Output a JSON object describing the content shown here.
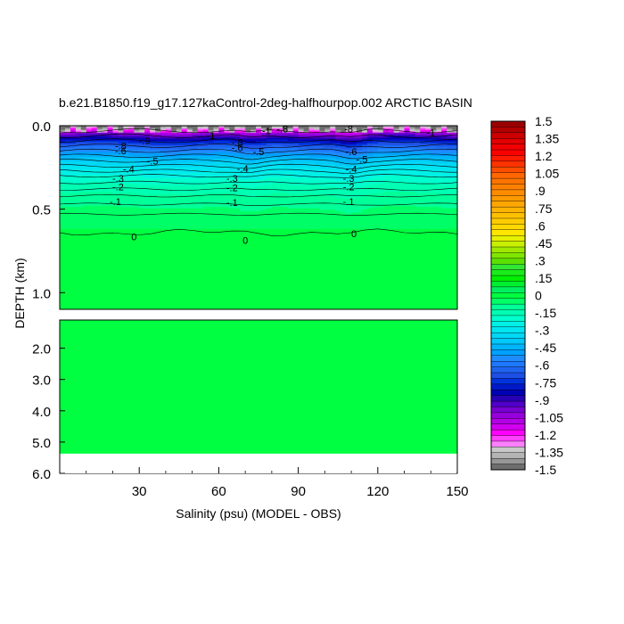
{
  "chart_data": {
    "type": "heatmap",
    "title": "b.e21.B1850.f19_g17.127kaControl-2deg-halfhourpop.002 ARCTIC BASIN",
    "xlabel": "Salinity (psu) (MODEL - OBS)",
    "ylabel": "DEPTH (km)",
    "xlim": [
      0,
      150
    ],
    "upper_panel": {
      "ylim": [
        0.0,
        1.1
      ],
      "yticks": [
        "0.0",
        "0.5",
        "1.0"
      ],
      "ytick_values": [
        0.0,
        0.5,
        1.0
      ]
    },
    "lower_panel": {
      "ylim": [
        1.1,
        6.0
      ],
      "yticks": [
        "2.0",
        "3.0",
        "4.0",
        "5.0",
        "6.0"
      ],
      "ytick_values": [
        2.0,
        3.0,
        4.0,
        5.0,
        6.0
      ],
      "bottom_of_data": 5.37
    },
    "xticks": [
      "30",
      "60",
      "90",
      "120",
      "150"
    ],
    "xtick_values": [
      30,
      60,
      90,
      120,
      150
    ],
    "contour_labels": [
      {
        "text": "0",
        "x": 28,
        "depth": 0.665
      },
      {
        "text": "0",
        "x": 70,
        "depth": 0.685
      },
      {
        "text": "0",
        "x": 111,
        "depth": 0.645
      },
      {
        "text": "-.1",
        "x": 21,
        "depth": 0.455
      },
      {
        "text": "-.1",
        "x": 65,
        "depth": 0.46
      },
      {
        "text": "-.1",
        "x": 109,
        "depth": 0.455
      },
      {
        "text": "-.2",
        "x": 22,
        "depth": 0.365
      },
      {
        "text": "-.2",
        "x": 65,
        "depth": 0.37
      },
      {
        "text": "-.2",
        "x": 109,
        "depth": 0.365
      },
      {
        "text": "-.3",
        "x": 22,
        "depth": 0.315
      },
      {
        "text": "-.3",
        "x": 65,
        "depth": 0.315
      },
      {
        "text": "-.3",
        "x": 109,
        "depth": 0.315
      },
      {
        "text": "-.4",
        "x": 26,
        "depth": 0.26
      },
      {
        "text": "-.4",
        "x": 69,
        "depth": 0.255
      },
      {
        "text": "-.4",
        "x": 110,
        "depth": 0.26
      },
      {
        "text": "-.5",
        "x": 35,
        "depth": 0.21
      },
      {
        "text": "-.5",
        "x": 75,
        "depth": 0.155
      },
      {
        "text": "-.5",
        "x": 114,
        "depth": 0.2
      },
      {
        "text": "-.6",
        "x": 23,
        "depth": 0.15
      },
      {
        "text": "-.6",
        "x": 67,
        "depth": 0.13
      },
      {
        "text": "-.6",
        "x": 110,
        "depth": 0.155
      },
      {
        "text": "-.8",
        "x": 23,
        "depth": 0.12
      },
      {
        "text": "-.8",
        "x": 67,
        "depth": 0.1
      },
      {
        "text": "-.9",
        "x": 32,
        "depth": 0.09
      },
      {
        "text": "-1",
        "x": 57,
        "depth": 0.06
      },
      {
        "text": "-1",
        "x": 78,
        "depth": 0.03
      },
      {
        "text": "-.8",
        "x": 84,
        "depth": 0.02
      },
      {
        "text": "-8",
        "x": 109,
        "depth": 0.02
      },
      {
        "text": "-1",
        "x": 140,
        "depth": 0.04
      }
    ],
    "colorbar": {
      "labels": [
        "1.5",
        "1.35",
        "1.2",
        "1.05",
        ".9",
        ".75",
        ".6",
        ".45",
        ".3",
        ".15",
        "0",
        "-.15",
        "-.3",
        "-.45",
        "-.6",
        "-.75",
        "-.9",
        "-1.05",
        "-1.2",
        "-1.35",
        "-1.5"
      ],
      "min": -1.5,
      "max": 1.5,
      "step": 0.075,
      "colors_top_to_bottom": [
        "#9b0000",
        "#b20000",
        "#cc0000",
        "#e20000",
        "#f20000",
        "#ff0000",
        "#ff1a00",
        "#ff3300",
        "#ff4d00",
        "#ff6600",
        "#ff7300",
        "#ff8000",
        "#ff8c00",
        "#ff9900",
        "#ffa600",
        "#ffb300",
        "#ffc000",
        "#ffcc00",
        "#ffd800",
        "#ffe600",
        "#e6f000",
        "#c8f000",
        "#a0e800",
        "#80e600",
        "#5ce000",
        "#33e633",
        "#1aeb1a",
        "#00f000",
        "#00f030",
        "#00f060",
        "#00ff40",
        "#00ff66",
        "#00ff99",
        "#00ffb3",
        "#00ffcc",
        "#00f0e6",
        "#00e6f0",
        "#00d8f5",
        "#00c8f8",
        "#00b4fa",
        "#00a0ff",
        "#1e8cff",
        "#1e78ff",
        "#1e64f0",
        "#1e50e6",
        "#0032dc",
        "#0019c8",
        "#0000b4",
        "#2800b4",
        "#5000c8",
        "#7800d2",
        "#9600dc",
        "#b400e6",
        "#d200f0",
        "#ff00ff",
        "#ff40ff",
        "#ff80ff",
        "#c8c8c8",
        "#b4b4b4",
        "#969696",
        "#6e6e6e"
      ]
    },
    "grid": false
  }
}
